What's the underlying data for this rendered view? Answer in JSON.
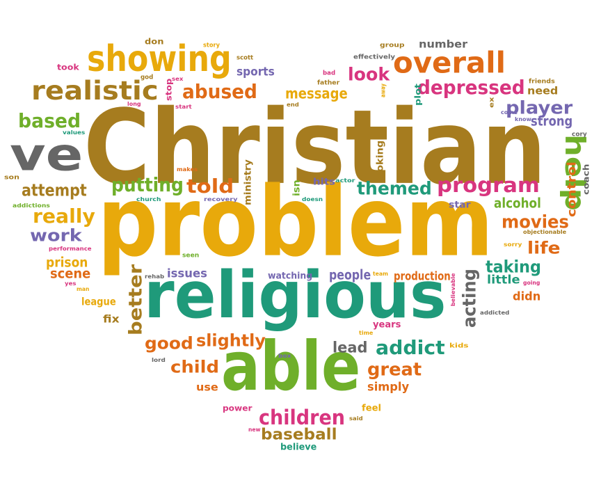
{
  "words": [
    {
      "text": "Christian",
      "color": "#A67C1F"
    },
    {
      "text": "problem",
      "color": "#E8A90B"
    },
    {
      "text": "religious",
      "color": "#1F9A7A"
    },
    {
      "text": "able",
      "color": "#6FAF2A"
    },
    {
      "text": "ve",
      "color": "#666666"
    },
    {
      "text": "showing",
      "color": "#E8A90B"
    },
    {
      "text": "overall",
      "color": "#E06A16"
    },
    {
      "text": "realistic",
      "color": "#A67C1F"
    },
    {
      "text": "help",
      "color": "#6FAF2A"
    },
    {
      "text": "depressed",
      "color": "#D8357F"
    },
    {
      "text": "abused",
      "color": "#E06A16"
    },
    {
      "text": "program",
      "color": "#D8357F"
    },
    {
      "text": "putting",
      "color": "#6FAF2A"
    },
    {
      "text": "told",
      "color": "#E06A16"
    },
    {
      "text": "themed",
      "color": "#1F9A7A"
    },
    {
      "text": "player",
      "color": "#7467B0"
    },
    {
      "text": "based",
      "color": "#6FAF2A"
    },
    {
      "text": "look",
      "color": "#D8357F"
    },
    {
      "text": "message",
      "color": "#E8A90B"
    },
    {
      "text": "attempt",
      "color": "#A67C1F"
    },
    {
      "text": "really",
      "color": "#E8A90B"
    },
    {
      "text": "work",
      "color": "#7467B0"
    },
    {
      "text": "movies",
      "color": "#E06A16"
    },
    {
      "text": "life",
      "color": "#E06A16"
    },
    {
      "text": "taking",
      "color": "#1F9A7A"
    },
    {
      "text": "better",
      "color": "#A67C1F"
    },
    {
      "text": "acting",
      "color": "#666666"
    },
    {
      "text": "good",
      "color": "#E06A16"
    },
    {
      "text": "slightly",
      "color": "#E06A16"
    },
    {
      "text": "addict",
      "color": "#1F9A7A"
    },
    {
      "text": "great",
      "color": "#E06A16"
    },
    {
      "text": "child",
      "color": "#E06A16"
    },
    {
      "text": "children",
      "color": "#D8357F"
    },
    {
      "text": "baseball",
      "color": "#A67C1F"
    },
    {
      "text": "alcohol",
      "color": "#6FAF2A"
    },
    {
      "text": "strong",
      "color": "#7467B0"
    },
    {
      "text": "control",
      "color": "#E06A16"
    },
    {
      "text": "prison",
      "color": "#E8A90B"
    },
    {
      "text": "scene",
      "color": "#E06A16"
    },
    {
      "text": "lead",
      "color": "#666666"
    },
    {
      "text": "sports",
      "color": "#7467B0"
    },
    {
      "text": "number",
      "color": "#666666"
    },
    {
      "text": "issues",
      "color": "#7467B0"
    },
    {
      "text": "people",
      "color": "#7467B0"
    },
    {
      "text": "production",
      "color": "#E06A16"
    },
    {
      "text": "didn",
      "color": "#E06A16"
    },
    {
      "text": "little",
      "color": "#1F9A7A"
    },
    {
      "text": "need",
      "color": "#A67C1F"
    },
    {
      "text": "watching",
      "color": "#7467B0"
    },
    {
      "text": "years",
      "color": "#D8357F"
    },
    {
      "text": "simply",
      "color": "#E06A16"
    },
    {
      "text": "use",
      "color": "#E06A16"
    },
    {
      "text": "league",
      "color": "#E8A90B"
    },
    {
      "text": "fix",
      "color": "#A67C1F"
    },
    {
      "text": "star",
      "color": "#7467B0"
    },
    {
      "text": "hits",
      "color": "#7467B0"
    },
    {
      "text": "ministry",
      "color": "#A67C1F"
    },
    {
      "text": "looking",
      "color": "#A67C1F"
    },
    {
      "text": "isn",
      "color": "#6FAF2A"
    },
    {
      "text": "coach",
      "color": "#666666"
    },
    {
      "text": "feel",
      "color": "#E8A90B"
    },
    {
      "text": "believe",
      "color": "#1F9A7A"
    },
    {
      "text": "power",
      "color": "#D8357F"
    },
    {
      "text": "stop",
      "color": "#D8357F"
    },
    {
      "text": "plot",
      "color": "#1F9A7A"
    },
    {
      "text": "don",
      "color": "#A67C1F"
    },
    {
      "text": "took",
      "color": "#D8357F"
    },
    {
      "text": "story",
      "color": "#E8A90B"
    },
    {
      "text": "scott",
      "color": "#A67C1F"
    },
    {
      "text": "group",
      "color": "#A67C1F"
    },
    {
      "text": "effectively",
      "color": "#666666"
    },
    {
      "text": "god",
      "color": "#A67C1F"
    },
    {
      "text": "sex",
      "color": "#D8357F"
    },
    {
      "text": "bad",
      "color": "#D8357F"
    },
    {
      "text": "father",
      "color": "#A67C1F"
    },
    {
      "text": "away",
      "color": "#E8A90B"
    },
    {
      "text": "friends",
      "color": "#A67C1F"
    },
    {
      "text": "long",
      "color": "#D8357F"
    },
    {
      "text": "start",
      "color": "#D8357F"
    },
    {
      "text": "end",
      "color": "#A67C1F"
    },
    {
      "text": "ex",
      "color": "#A67C1F"
    },
    {
      "text": "come",
      "color": "#7467B0"
    },
    {
      "text": "know",
      "color": "#7467B0"
    },
    {
      "text": "cory",
      "color": "#666666"
    },
    {
      "text": "values",
      "color": "#1F9A7A"
    },
    {
      "text": "makes",
      "color": "#E06A16"
    },
    {
      "text": "son",
      "color": "#A67C1F"
    },
    {
      "text": "church",
      "color": "#1F9A7A"
    },
    {
      "text": "recovery",
      "color": "#7467B0"
    },
    {
      "text": "doesn",
      "color": "#1F9A7A"
    },
    {
      "text": "actor",
      "color": "#1F9A7A"
    },
    {
      "text": "addictions",
      "color": "#6FAF2A"
    },
    {
      "text": "performance",
      "color": "#D8357F"
    },
    {
      "text": "seen",
      "color": "#6FAF2A"
    },
    {
      "text": "objectionable",
      "color": "#A67C1F"
    },
    {
      "text": "sorry",
      "color": "#E8A90B"
    },
    {
      "text": "yes",
      "color": "#D8357F"
    },
    {
      "text": "man",
      "color": "#E8A90B"
    },
    {
      "text": "rehab",
      "color": "#666666"
    },
    {
      "text": "team",
      "color": "#E8A90B"
    },
    {
      "text": "believable",
      "color": "#D8357F"
    },
    {
      "text": "going",
      "color": "#D8357F"
    },
    {
      "text": "addicted",
      "color": "#666666"
    },
    {
      "text": "time",
      "color": "#E8A90B"
    },
    {
      "text": "kids",
      "color": "#E8A90B"
    },
    {
      "text": "box",
      "color": "#7467B0"
    },
    {
      "text": "lord",
      "color": "#666666"
    },
    {
      "text": "said",
      "color": "#A67C1F"
    },
    {
      "text": "new",
      "color": "#D8357F"
    }
  ]
}
